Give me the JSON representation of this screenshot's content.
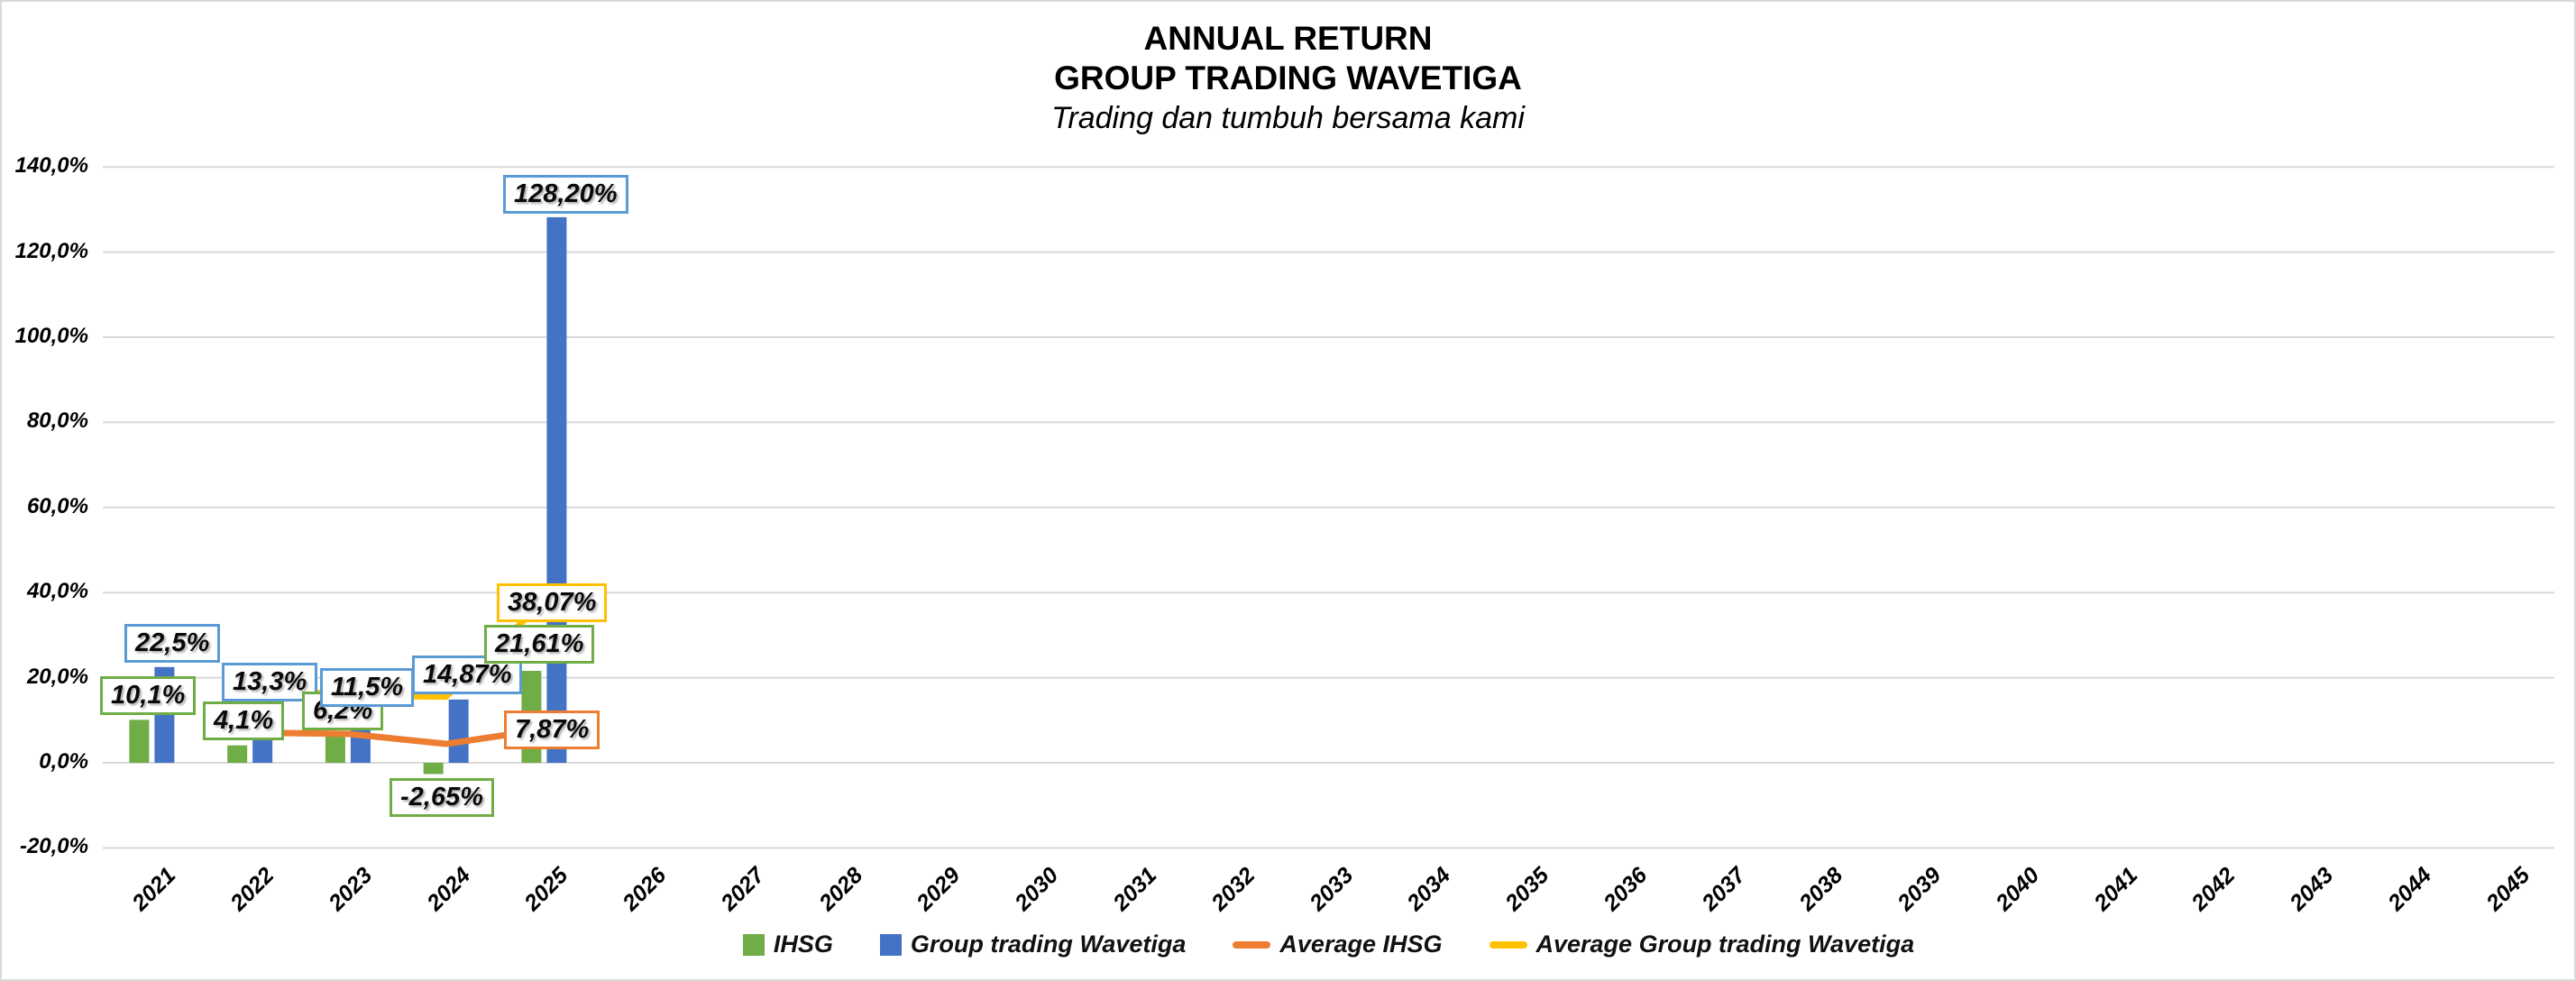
{
  "header": {
    "title_line1": "ANNUAL RETURN",
    "title_line2": "GROUP TRADING WAVETIGA",
    "subtitle": "Trading dan tumbuh bersama kami"
  },
  "chart_data": {
    "type": "bar",
    "title": "ANNUAL RETURN GROUP TRADING WAVETIGA",
    "subtitle": "Trading dan tumbuh bersama kami",
    "categories": [
      "2021",
      "2022",
      "2023",
      "2024",
      "2025",
      "2026",
      "2027",
      "2028",
      "2029",
      "2030",
      "2031",
      "2032",
      "2033",
      "2034",
      "2035",
      "2036",
      "2037",
      "2038",
      "2039",
      "2040",
      "2041",
      "2042",
      "2043",
      "2044",
      "2045"
    ],
    "series": [
      {
        "name": "IHSG",
        "type": "bar",
        "color": "#70AD47",
        "values": [
          10.1,
          4.1,
          6.2,
          -2.65,
          21.61
        ]
      },
      {
        "name": "Group trading Wavetiga",
        "type": "bar",
        "color": "#4472C4",
        "values": [
          22.5,
          13.3,
          11.5,
          14.87,
          128.2
        ]
      },
      {
        "name": "Average IHSG",
        "type": "line",
        "color": "#ED7D31",
        "values": [
          null,
          7.1,
          6.8,
          4.44,
          7.87
        ]
      },
      {
        "name": "Average Group trading Wavetiga",
        "type": "line",
        "color": "#FFC000",
        "values": [
          null,
          17.9,
          15.77,
          15.54,
          38.07
        ]
      }
    ],
    "data_labels": [
      {
        "text": "10,1%",
        "series": "IHSG",
        "category": "2021",
        "border": "#70AD47"
      },
      {
        "text": "22,5%",
        "series": "Group trading Wavetiga",
        "category": "2021",
        "border": "#5B9BD5"
      },
      {
        "text": "4,1%",
        "series": "IHSG",
        "category": "2022",
        "border": "#70AD47"
      },
      {
        "text": "13,3%",
        "series": "Group trading Wavetiga",
        "category": "2022",
        "border": "#5B9BD5"
      },
      {
        "text": "6,2%",
        "series": "IHSG",
        "category": "2023",
        "border": "#70AD47"
      },
      {
        "text": "11,5%",
        "series": "Group trading Wavetiga",
        "category": "2023",
        "border": "#5B9BD5"
      },
      {
        "text": "14,87%",
        "series": "Group trading Wavetiga",
        "category": "2024",
        "border": "#5B9BD5"
      },
      {
        "text": "-2,65%",
        "series": "IHSG",
        "category": "2024",
        "border": "#70AD47"
      },
      {
        "text": "21,61%",
        "series": "IHSG",
        "category": "2025",
        "border": "#70AD47"
      },
      {
        "text": "38,07%",
        "series": "Average Group trading Wavetiga",
        "category": "2025",
        "border": "#FFC000"
      },
      {
        "text": "7,87%",
        "series": "Average IHSG",
        "category": "2025",
        "border": "#ED7D31"
      },
      {
        "text": "128,20%",
        "series": "Group trading Wavetiga",
        "category": "2025",
        "border": "#5B9BD5"
      }
    ],
    "y_axis": {
      "min": -20,
      "max": 140,
      "step": 20,
      "tick_labels": [
        "140,0%",
        "120,0%",
        "100,0%",
        "80,0%",
        "60,0%",
        "40,0%",
        "20,0%",
        "0,0%",
        "-20,0%"
      ]
    },
    "grid": true,
    "legend_position": "bottom",
    "colors": {
      "ihsg": "#70AD47",
      "wavetiga": "#4472C4",
      "avg_ihsg": "#ED7D31",
      "avg_wavetiga": "#FFC000",
      "gridline": "#D9D9D9",
      "label_border_blue": "#5B9BD5"
    }
  }
}
